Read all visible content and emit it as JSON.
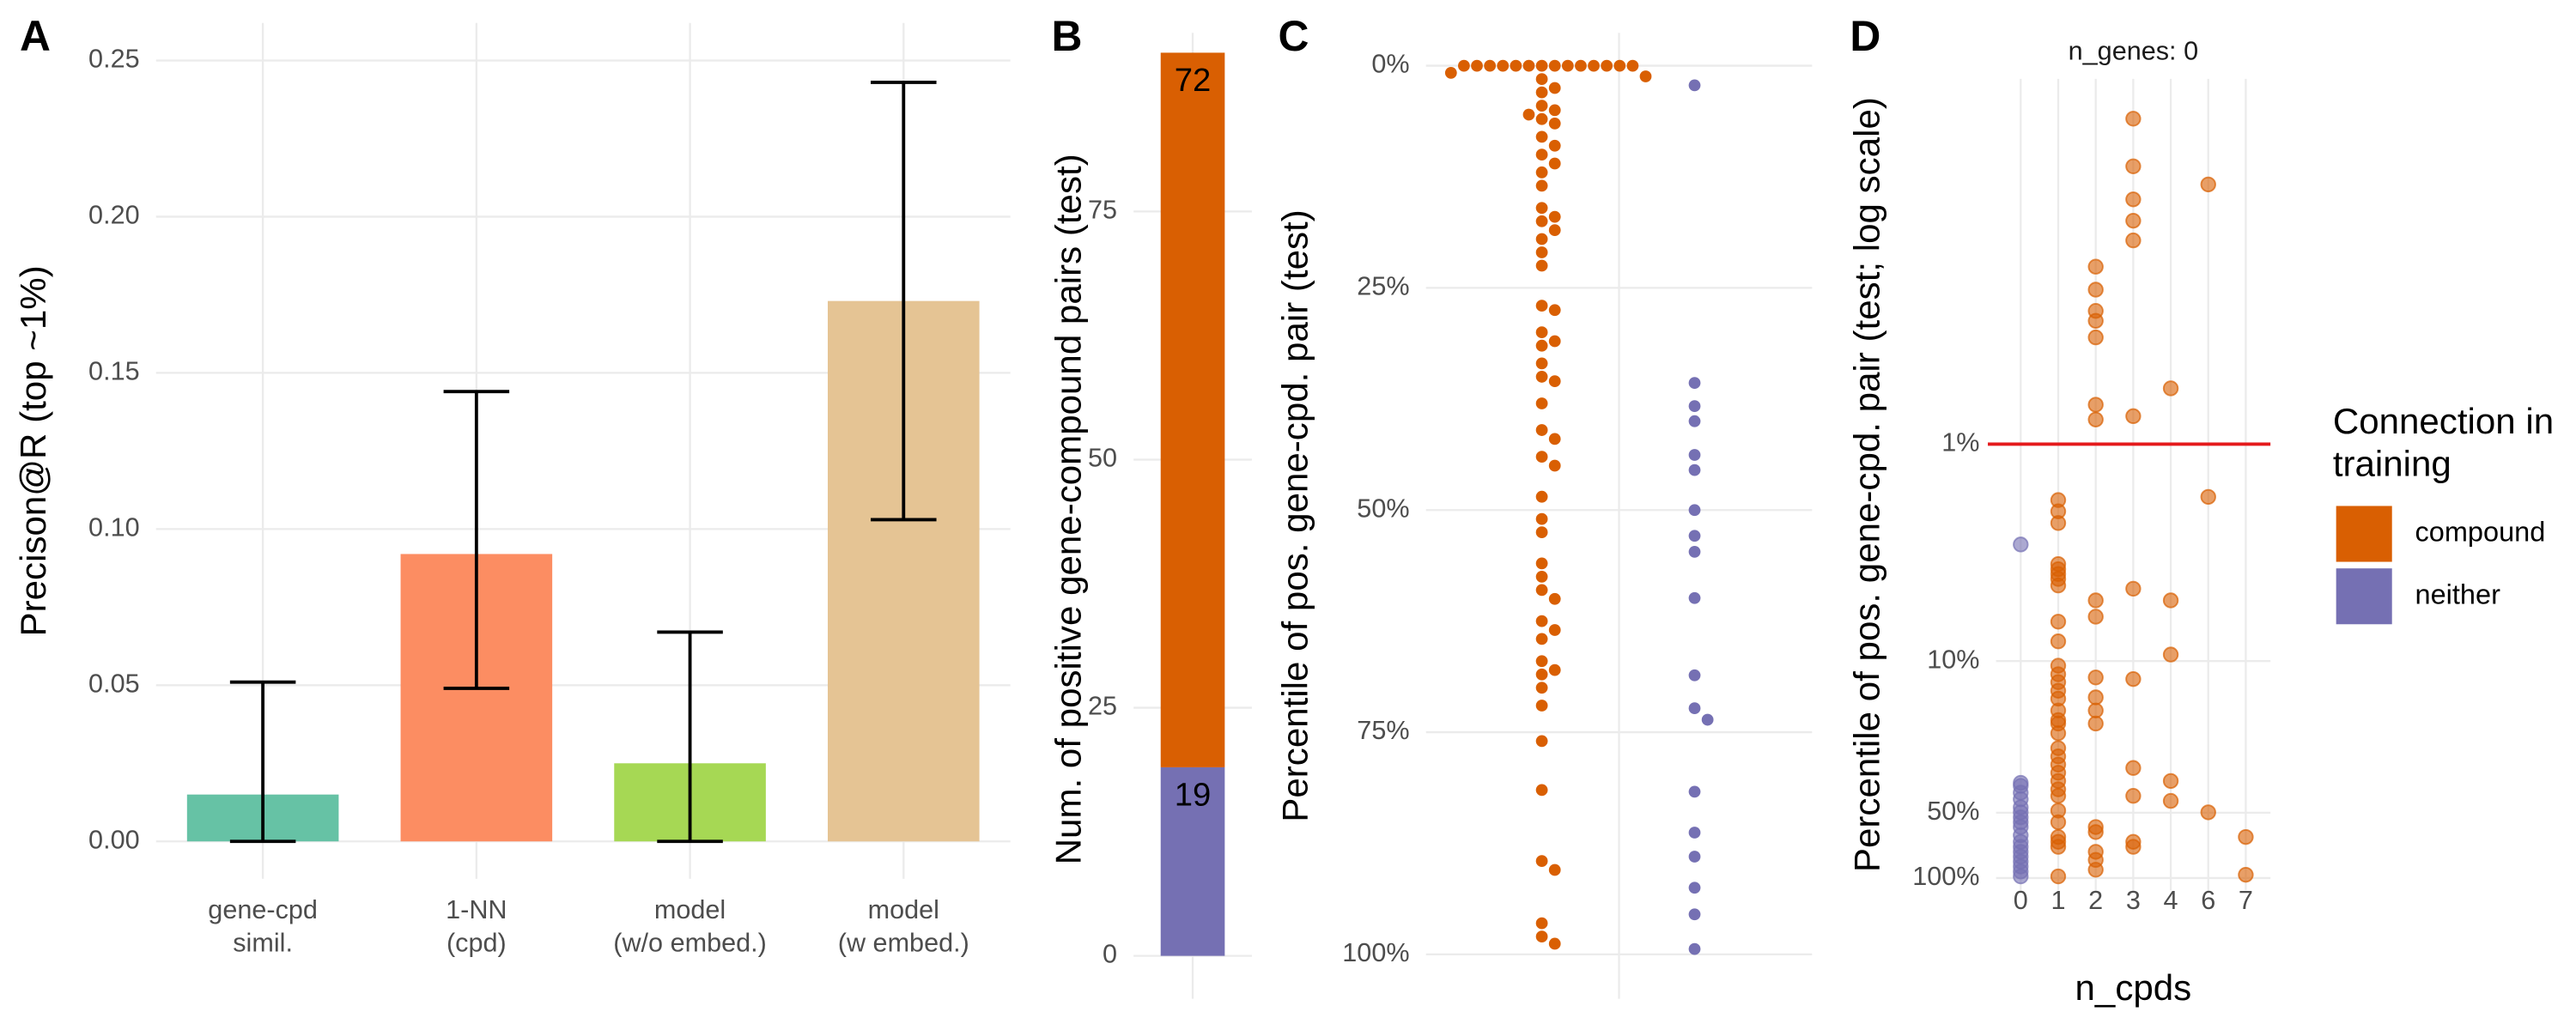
{
  "chart_data": [
    {
      "type": "bar",
      "panel": "A",
      "categories": [
        "gene-cpd\nsimil.",
        "1-NN\n(cpd)",
        "model\n(w/o embed.)",
        "model\n(w embed.)"
      ],
      "values": [
        0.015,
        0.092,
        0.025,
        0.173
      ],
      "lower": [
        0,
        0.049,
        0,
        0.103
      ],
      "upper": [
        0.051,
        0.144,
        0.067,
        0.243
      ],
      "colors": [
        "#66c2a5",
        "#fc8d62",
        "#a6d854",
        "#e5c494"
      ],
      "ylabel": "Precison@R (top ~1%)",
      "ylim": [
        -0.012,
        0.262
      ],
      "yticks": [
        {
          "value": 0,
          "label": "0.00"
        },
        {
          "value": 0.05,
          "label": "0.05"
        },
        {
          "value": 0.1,
          "label": "0.10"
        },
        {
          "value": 0.15,
          "label": "0.15"
        },
        {
          "value": 0.2,
          "label": "0.20"
        },
        {
          "value": 0.25,
          "label": "0.25"
        }
      ],
      "grid": true
    },
    {
      "type": "stacked_bar",
      "panel": "B",
      "series": [
        {
          "color": "#7570b3",
          "values": [
            19
          ]
        },
        {
          "color": "#d95f02",
          "values": [
            72
          ]
        }
      ],
      "ylabel": "Num. of positive gene-compound pairs (test)",
      "ylim": [
        -3,
        93
      ],
      "yticks": [
        0,
        25,
        50,
        75
      ],
      "grid": true
    },
    {
      "type": "beeswarm",
      "panel": "C",
      "series": [
        {
          "color": "#d95f02",
          "values": [
            0,
            0,
            0,
            0,
            0,
            0,
            0,
            0,
            0,
            0,
            0,
            0,
            0,
            0,
            0.8,
            1.2,
            1.5,
            2.5,
            3,
            4.5,
            5,
            5.5,
            6,
            6.5,
            8,
            9,
            10,
            11,
            12,
            13.5,
            16,
            17,
            17.5,
            18.5,
            19.5,
            21,
            22.5,
            27,
            27.5,
            30,
            31,
            31.5,
            33.5,
            35,
            35.5,
            38,
            41,
            42,
            44,
            45,
            48.5,
            51,
            52.5,
            56,
            57.5,
            59,
            60,
            62.5,
            63.5,
            64.5,
            67,
            68,
            68.5,
            70,
            72,
            76,
            81.5,
            89.5,
            90.5,
            96.5,
            98,
            98.8
          ]
        },
        {
          "color": "#7570b3",
          "values": [
            2.2,
            35.7,
            38.3,
            40,
            43.8,
            45.5,
            50,
            52.9,
            54.7,
            59.9,
            68.6,
            72.3,
            73.6,
            81.7,
            86.3,
            89,
            92.5,
            95.5,
            99.4
          ]
        }
      ],
      "ylabel": "Percentile of pos. gene-cpd. pair (test)",
      "ylim": [
        -3.7,
        105
      ],
      "reverse": true,
      "yticks": [
        {
          "value": 0,
          "label": "0%"
        },
        {
          "value": 25,
          "label": "25%"
        },
        {
          "value": 50,
          "label": "50%"
        },
        {
          "value": 75,
          "label": "75%"
        },
        {
          "value": 100,
          "label": "100%"
        }
      ],
      "grid": true
    },
    {
      "type": "scatter",
      "panel": "D",
      "title": "n_genes: 0",
      "xlabel": "n_cpds",
      "ylabel": "Percentile of pos. gene-cpd. pair (test; log scale)",
      "categories": [
        0,
        1,
        2,
        3,
        4,
        6,
        7
      ],
      "log_y": true,
      "reverse": true,
      "ylim": [
        0.0207,
        114
      ],
      "yticks": [
        {
          "value": 1,
          "label": "1%"
        },
        {
          "value": 10,
          "label": "10%"
        },
        {
          "value": 50,
          "label": "50%"
        },
        {
          "value": 100,
          "label": "100%"
        }
      ],
      "grid": true,
      "hline": {
        "value": 1,
        "color": "#e41a1c"
      },
      "legend_title": [
        "Connection in",
        "training"
      ],
      "series": [
        {
          "name": "compound",
          "color": "#d95f02",
          "x": [
            1,
            1,
            1,
            1,
            1,
            1,
            1,
            1,
            1,
            1,
            1,
            1,
            1,
            1,
            1,
            1,
            1,
            1,
            1,
            1,
            1,
            1,
            1,
            1,
            1,
            1,
            1,
            1,
            1,
            1,
            1,
            1,
            2,
            2,
            2,
            2,
            2,
            2,
            2,
            2,
            2,
            2,
            2,
            2,
            2,
            2,
            2,
            2,
            2,
            2,
            3,
            3,
            3,
            3,
            3,
            3,
            3,
            3,
            3,
            3,
            3,
            3,
            4,
            4,
            4,
            4,
            4,
            6,
            6,
            6,
            7,
            7
          ],
          "values": [
            1.81,
            2.04,
            2.31,
            3.57,
            3.77,
            3.97,
            4.18,
            4.48,
            6.58,
            8.11,
            10.5,
            11.5,
            12.5,
            13.7,
            14.9,
            16.9,
            18.7,
            19.4,
            21.5,
            25.2,
            27.5,
            30,
            32.7,
            35.7,
            39,
            41.8,
            48.9,
            55.3,
            64.7,
            68.1,
            71.8,
            98.3,
            0.152,
            0.194,
            0.243,
            0.27,
            0.322,
            0.658,
            0.77,
            5.25,
            6.24,
            11.9,
            14.7,
            16.9,
            19.4,
            58.2,
            61.4,
            75.7,
            82.5,
            91.6,
            0.0316,
            0.0524,
            0.0744,
            0.0933,
            0.115,
            0.743,
            4.64,
            12.1,
            31.1,
            41.8,
            68.1,
            71.8,
            0.553,
            5.25,
            9.33,
            35.7,
            44.1,
            0.0635,
            1.75,
            49.8,
            64.7,
            96.6
          ]
        },
        {
          "name": "neither",
          "color": "#7570b3",
          "x": [
            0,
            0,
            0,
            0,
            0,
            0,
            0,
            0,
            0,
            0,
            0,
            0,
            0,
            0,
            0,
            0,
            0,
            0,
            0
          ],
          "values": [
            2.9,
            36.4,
            37.6,
            40.4,
            43.3,
            47.2,
            49.8,
            52.5,
            55.3,
            58.2,
            63.5,
            68.1,
            71.8,
            75.7,
            79.7,
            84,
            88.5,
            93.3,
            98.3
          ]
        }
      ]
    }
  ]
}
